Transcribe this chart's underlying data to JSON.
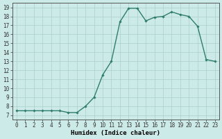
{
  "x": [
    0,
    1,
    2,
    3,
    4,
    5,
    6,
    7,
    8,
    9,
    10,
    11,
    12,
    13,
    14,
    15,
    16,
    17,
    18,
    19,
    20,
    21,
    22,
    23
  ],
  "y": [
    7.5,
    7.5,
    7.5,
    7.5,
    7.5,
    7.5,
    7.3,
    7.3,
    8.0,
    9.0,
    11.5,
    13.0,
    17.4,
    18.9,
    18.9,
    17.5,
    17.9,
    18.0,
    18.5,
    18.2,
    18.0,
    16.9,
    13.2,
    13.0
  ],
  "line_color": "#2e7d6e",
  "marker": "D",
  "marker_size": 1.8,
  "line_width": 1.0,
  "bg_color": "#cceae7",
  "grid_color": "#aacfcc",
  "xlabel": "Humidex (Indice chaleur)",
  "xlim": [
    -0.5,
    23.5
  ],
  "ylim": [
    6.5,
    19.5
  ],
  "yticks": [
    7,
    8,
    9,
    10,
    11,
    12,
    13,
    14,
    15,
    16,
    17,
    18,
    19
  ],
  "xtick_labels": [
    "0",
    "1",
    "2",
    "3",
    "4",
    "5",
    "6",
    "7",
    "8",
    "9",
    "10",
    "11",
    "12",
    "13",
    "14",
    "15",
    "16",
    "17",
    "18",
    "19",
    "20",
    "21",
    "22",
    "23"
  ],
  "tick_fontsize": 5.5,
  "xlabel_fontsize": 6.5,
  "spine_color": "#555555"
}
